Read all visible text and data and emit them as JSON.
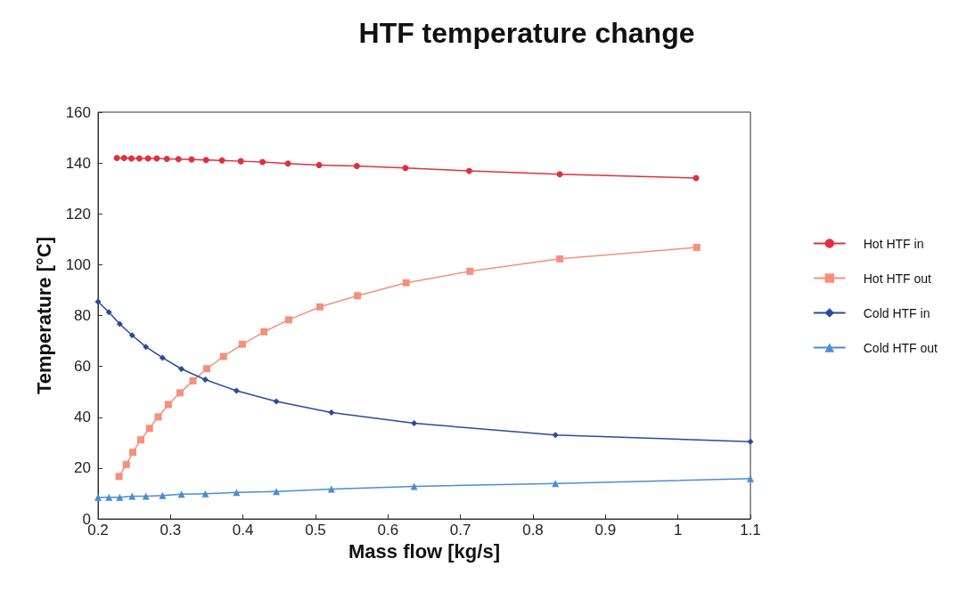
{
  "chart_data": {
    "type": "line",
    "title": "HTF temperature change",
    "xlabel": "Mass flow [kg/s]",
    "ylabel": "Temperature [°C]",
    "xlim": [
      0.2,
      1.1
    ],
    "xticks": [
      0.2,
      0.3,
      0.4,
      0.5,
      0.6,
      0.7,
      0.8,
      0.9,
      1,
      1.1
    ],
    "ylim": [
      0,
      160
    ],
    "yticks": [
      0,
      20,
      40,
      60,
      80,
      100,
      120,
      140,
      160
    ],
    "grid": false,
    "legend": "right",
    "line_style": "solid",
    "series": [
      {
        "name": "Hot HTF in",
        "color": "#e03040",
        "marker": "circle",
        "x": [
          0.226,
          0.236,
          0.246,
          0.257,
          0.269,
          0.281,
          0.295,
          0.311,
          0.329,
          0.349,
          0.371,
          0.397,
          0.427,
          0.462,
          0.505,
          0.557,
          0.624,
          0.712,
          0.837,
          1.025
        ],
        "values": [
          142.0,
          142.0,
          141.8,
          141.8,
          141.8,
          141.8,
          141.6,
          141.5,
          141.4,
          141.2,
          141.0,
          140.7,
          140.4,
          139.8,
          139.2,
          138.8,
          138.0,
          136.9,
          135.6,
          134.1
        ]
      },
      {
        "name": "Hot HTF out",
        "color": "#f4907c",
        "marker": "square",
        "x": [
          0.229,
          0.239,
          0.248,
          0.259,
          0.271,
          0.283,
          0.297,
          0.313,
          0.331,
          0.35,
          0.373,
          0.399,
          0.429,
          0.463,
          0.506,
          0.558,
          0.625,
          0.713,
          0.837,
          1.026
        ],
        "values": [
          16.7,
          21.4,
          26.2,
          31.1,
          35.6,
          40.1,
          45.0,
          49.6,
          54.3,
          59.1,
          63.9,
          68.7,
          73.6,
          78.3,
          83.4,
          87.8,
          92.9,
          97.4,
          102.3,
          106.8
        ]
      },
      {
        "name": "Cold HTF in",
        "color": "#2c4a9c",
        "marker": "diamond",
        "x": [
          0.2,
          0.215,
          0.23,
          0.247,
          0.266,
          0.289,
          0.315,
          0.348,
          0.391,
          0.446,
          0.522,
          0.636,
          0.831,
          1.1
        ],
        "values": [
          85.4,
          81.3,
          76.7,
          72.2,
          67.7,
          63.4,
          59.0,
          54.8,
          50.4,
          46.2,
          41.8,
          37.6,
          33.0,
          30.4
        ]
      },
      {
        "name": "Cold HTF out",
        "color": "#4a8ed0",
        "marker": "triangle",
        "x": [
          0.2,
          0.215,
          0.23,
          0.247,
          0.266,
          0.289,
          0.315,
          0.348,
          0.391,
          0.446,
          0.522,
          0.636,
          0.831,
          1.1
        ],
        "values": [
          8.5,
          8.5,
          8.5,
          8.9,
          8.9,
          9.2,
          9.7,
          9.9,
          10.4,
          10.8,
          11.7,
          12.8,
          13.9,
          15.8
        ]
      }
    ]
  }
}
